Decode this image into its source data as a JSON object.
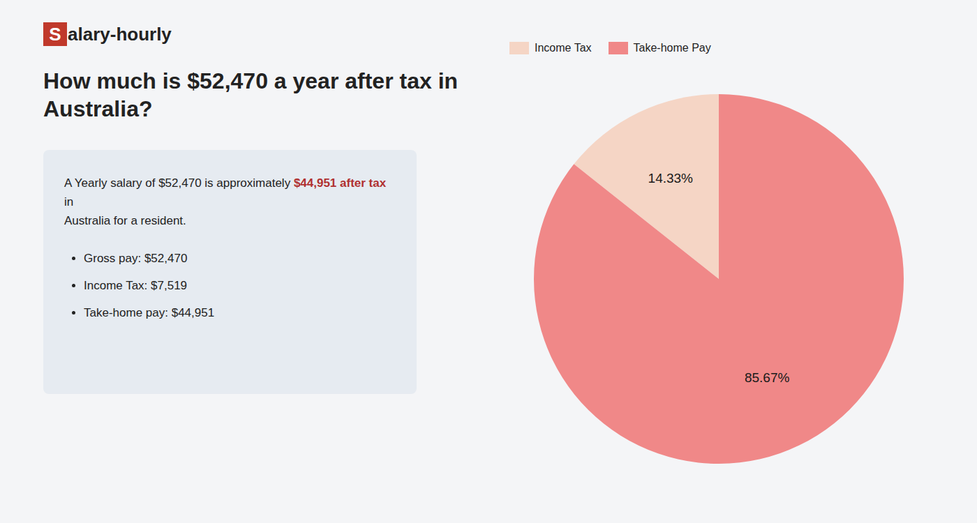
{
  "chart_data": {
    "type": "pie",
    "title": "How much is $52,470 a year after tax in Australia?",
    "annotations": [
      "S",
      "alary-hourly",
      "A Yearly salary of $52,470 is approximately ",
      "$44,951 after tax",
      " in",
      "Australia for a resident.",
      "Gross pay: $52,470",
      "Income Tax: $7,519",
      "Take-home pay: $44,951"
    ],
    "categories": [
      "Income Tax",
      "Take-home Pay"
    ],
    "values": [
      14.33,
      85.67
    ],
    "value_labels": [
      "14.33%",
      "85.67%"
    ],
    "colors": [
      "#f5d5c5",
      "#f08888"
    ],
    "data_labels": true,
    "legend": "top"
  }
}
